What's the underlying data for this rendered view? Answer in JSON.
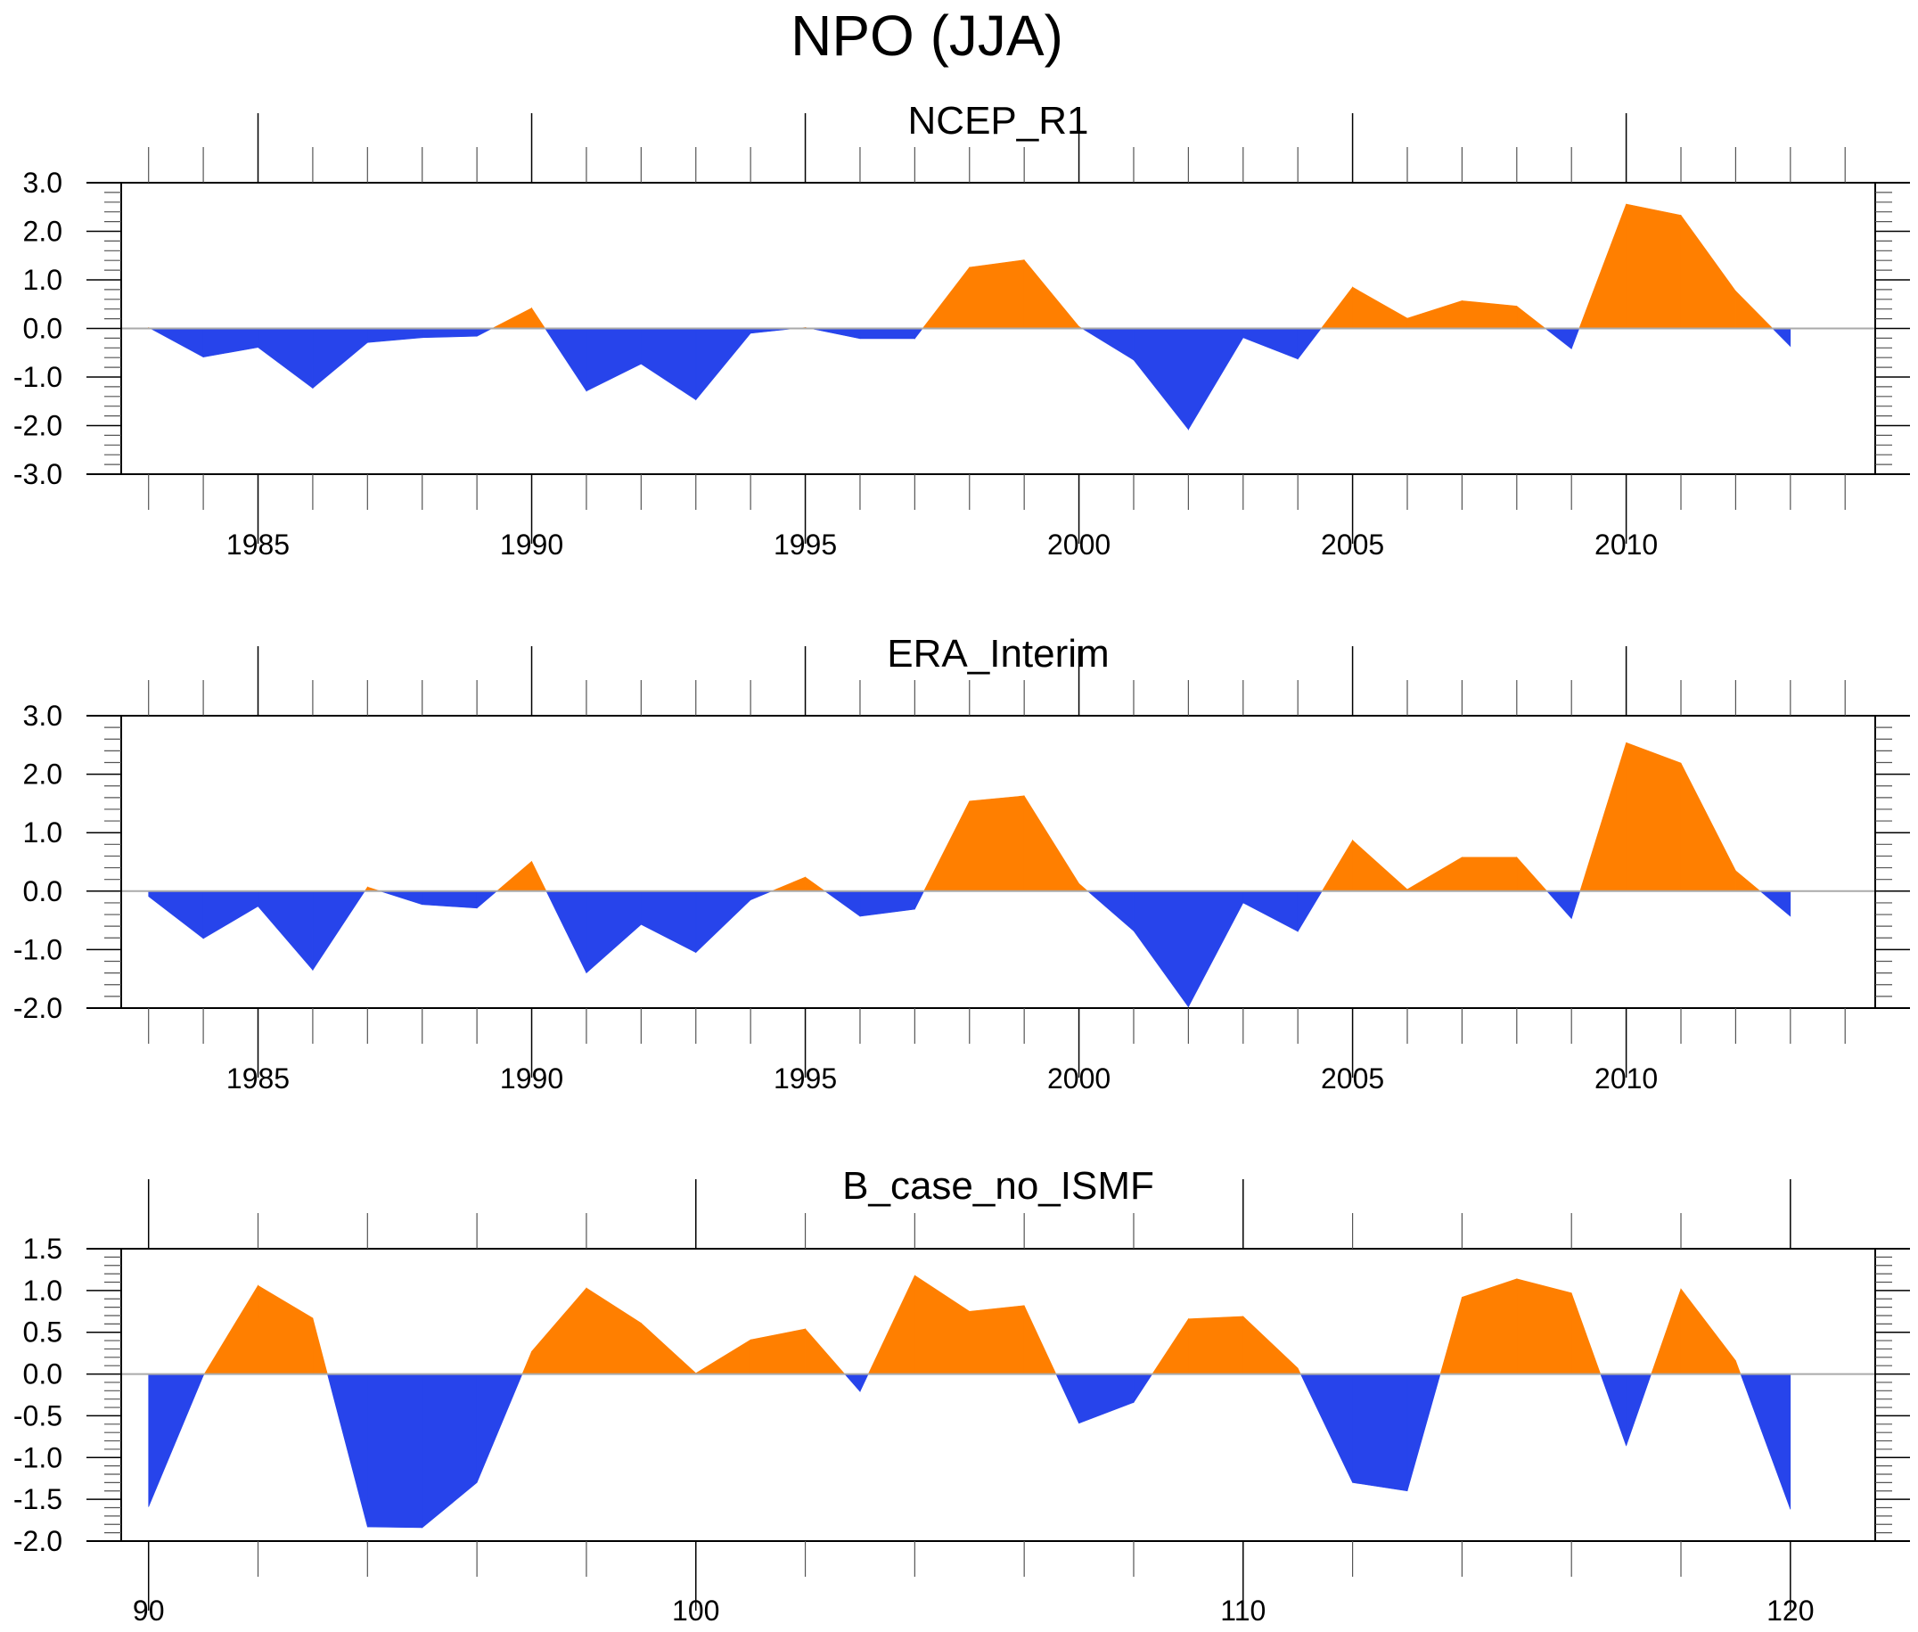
{
  "title": "NPO (JJA)",
  "colors": {
    "positive": "#ff7f00",
    "negative": "#2744eb",
    "zero_line": "#aaaaaa",
    "axis": "#000000"
  },
  "chart_data": [
    {
      "type": "area",
      "title": "NCEP_R1",
      "xlabel": "",
      "ylabel": "",
      "x": [
        1983,
        1984,
        1985,
        1986,
        1987,
        1988,
        1989,
        1990,
        1991,
        1992,
        1993,
        1994,
        1995,
        1996,
        1997,
        1998,
        1999,
        2000,
        2001,
        2002,
        2003,
        2004,
        2005,
        2006,
        2007,
        2008,
        2009,
        2010,
        2011,
        2012,
        2013
      ],
      "values": [
        0.02,
        -0.59,
        -0.39,
        -1.23,
        -0.29,
        -0.19,
        -0.16,
        0.42,
        -1.29,
        -0.73,
        -1.47,
        -0.1,
        0.02,
        -0.21,
        -0.21,
        1.26,
        1.41,
        0.04,
        -0.65,
        -2.08,
        -0.19,
        -0.63,
        0.85,
        0.21,
        0.57,
        0.46,
        -0.42,
        2.56,
        2.33,
        0.77,
        -0.37
      ],
      "xlim": [
        1982.5,
        2014.55
      ],
      "ylim": [
        -3.0,
        3.0
      ],
      "x_major_ticks": [
        1985,
        1990,
        1995,
        2000,
        2005,
        2010
      ],
      "x_tick_labels": [
        "1985",
        "1990",
        "1995",
        "2000",
        "2005",
        "2010"
      ],
      "x_minor_step": 1,
      "y_ticks": [
        3.0,
        2.0,
        1.0,
        0.0,
        -1.0,
        -2.0,
        -3.0
      ],
      "y_tick_labels": [
        "3.0",
        "2.0",
        "1.0",
        "0.0",
        "-1.0",
        "-2.0",
        "-3.0"
      ],
      "y_minor_step": 0.2,
      "fill_above_zero": "orange",
      "fill_below_zero": "blue",
      "grid": false
    },
    {
      "type": "area",
      "title": "ERA_Interim",
      "xlabel": "",
      "ylabel": "",
      "x": [
        1983,
        1984,
        1985,
        1986,
        1987,
        1988,
        1989,
        1990,
        1991,
        1992,
        1993,
        1994,
        1995,
        1996,
        1997,
        1998,
        1999,
        2000,
        2001,
        2002,
        2003,
        2004,
        2005,
        2006,
        2007,
        2008,
        2009,
        2010,
        2011,
        2012,
        2013
      ],
      "values": [
        -0.09,
        -0.81,
        -0.26,
        -1.35,
        0.07,
        -0.23,
        -0.29,
        0.51,
        -1.4,
        -0.57,
        -1.05,
        -0.15,
        0.24,
        -0.43,
        -0.31,
        1.54,
        1.63,
        0.13,
        -0.68,
        -1.98,
        -0.2,
        -0.69,
        0.87,
        0.03,
        0.58,
        0.58,
        -0.47,
        2.54,
        2.19,
        0.35,
        -0.43
      ],
      "xlim": [
        1982.5,
        2014.55
      ],
      "ylim": [
        -2.0,
        3.0
      ],
      "x_major_ticks": [
        1985,
        1990,
        1995,
        2000,
        2005,
        2010
      ],
      "x_tick_labels": [
        "1985",
        "1990",
        "1995",
        "2000",
        "2005",
        "2010"
      ],
      "x_minor_step": 1,
      "y_ticks": [
        3.0,
        2.0,
        1.0,
        0.0,
        -1.0,
        -2.0
      ],
      "y_tick_labels": [
        "3.0",
        "2.0",
        "1.0",
        "0.0",
        "-1.0",
        "-2.0"
      ],
      "y_minor_step": 0.2,
      "fill_above_zero": "orange",
      "fill_below_zero": "blue",
      "grid": false
    },
    {
      "type": "area",
      "title": "B_case_no_ISMF",
      "xlabel": "",
      "ylabel": "",
      "x": [
        90,
        91,
        92,
        93,
        94,
        95,
        96,
        97,
        98,
        99,
        100,
        101,
        102,
        103,
        104,
        105,
        106,
        107,
        108,
        109,
        110,
        111,
        112,
        113,
        114,
        115,
        116,
        117,
        118,
        119,
        120
      ],
      "values": [
        -1.59,
        -0.02,
        1.06,
        0.67,
        -1.83,
        -1.84,
        -1.3,
        0.27,
        1.03,
        0.61,
        0.01,
        0.41,
        0.54,
        -0.21,
        1.18,
        0.75,
        0.82,
        -0.59,
        -0.34,
        0.66,
        0.69,
        0.07,
        -1.3,
        -1.4,
        0.92,
        1.14,
        0.97,
        -0.86,
        1.02,
        0.16,
        -1.62
      ],
      "xlim": [
        89.5,
        121.55
      ],
      "ylim": [
        -2.0,
        1.5
      ],
      "x_major_ticks": [
        90,
        100,
        110,
        120
      ],
      "x_tick_labels": [
        "90",
        "100",
        "110",
        "120"
      ],
      "x_minor_step": 2,
      "y_ticks": [
        1.5,
        1.0,
        0.5,
        0.0,
        -0.5,
        -1.0,
        -1.5,
        -2.0
      ],
      "y_tick_labels": [
        "1.5",
        "1.0",
        "0.5",
        "0.0",
        "-0.5",
        "-1.0",
        "-1.5",
        "-2.0"
      ],
      "y_minor_step": 0.1,
      "fill_above_zero": "orange",
      "fill_below_zero": "blue",
      "grid": false
    }
  ]
}
